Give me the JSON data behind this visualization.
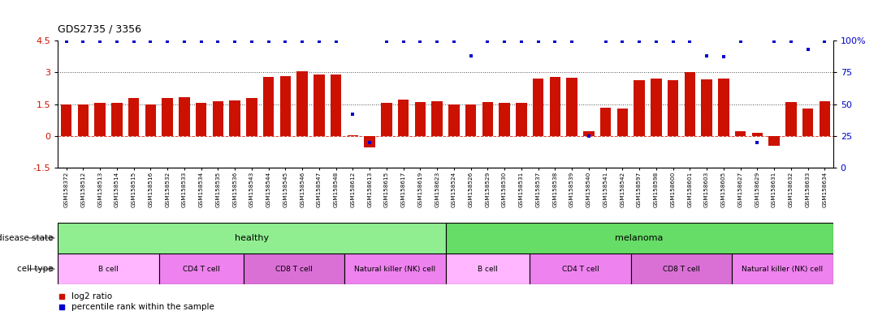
{
  "title": "GDS2735 / 3356",
  "samples": [
    "GSM158372",
    "GSM158512",
    "GSM158513",
    "GSM158514",
    "GSM158515",
    "GSM158516",
    "GSM158532",
    "GSM158533",
    "GSM158534",
    "GSM158535",
    "GSM158536",
    "GSM158543",
    "GSM158544",
    "GSM158545",
    "GSM158546",
    "GSM158547",
    "GSM158548",
    "GSM158612",
    "GSM158613",
    "GSM158615",
    "GSM158617",
    "GSM158619",
    "GSM158623",
    "GSM158524",
    "GSM158526",
    "GSM158529",
    "GSM158530",
    "GSM158531",
    "GSM158537",
    "GSM158538",
    "GSM158539",
    "GSM158540",
    "GSM158541",
    "GSM158542",
    "GSM158597",
    "GSM158598",
    "GSM158600",
    "GSM158601",
    "GSM158603",
    "GSM158605",
    "GSM158627",
    "GSM158629",
    "GSM158631",
    "GSM158632",
    "GSM158633",
    "GSM158634"
  ],
  "log2_ratio": [
    1.5,
    1.48,
    1.55,
    1.55,
    1.8,
    1.5,
    1.78,
    1.83,
    1.55,
    1.65,
    1.68,
    1.78,
    2.78,
    2.83,
    3.05,
    2.88,
    2.88,
    0.03,
    -0.55,
    1.55,
    1.7,
    1.6,
    1.65,
    1.48,
    1.47,
    1.6,
    1.58,
    1.58,
    2.7,
    2.78,
    2.75,
    0.22,
    1.35,
    1.3,
    2.62,
    2.72,
    2.62,
    3.0,
    2.65,
    2.72,
    0.22,
    0.15,
    -0.45,
    1.6,
    1.3,
    1.63
  ],
  "percentile": [
    99,
    99,
    99,
    99,
    99,
    99,
    99,
    99,
    99,
    99,
    99,
    99,
    99,
    99,
    99,
    99,
    99,
    42,
    20,
    99,
    99,
    99,
    99,
    99,
    88,
    99,
    99,
    99,
    99,
    99,
    99,
    25,
    99,
    99,
    99,
    99,
    99,
    99,
    88,
    87,
    99,
    20,
    99,
    99,
    93,
    99
  ],
  "disease_state_groups": [
    {
      "label": "healthy",
      "start": 0,
      "end": 23,
      "color": "#90EE90"
    },
    {
      "label": "melanoma",
      "start": 23,
      "end": 46,
      "color": "#66DD66"
    }
  ],
  "cell_type_groups": [
    {
      "label": "B cell",
      "start": 0,
      "end": 6,
      "color": "#FFB6FF"
    },
    {
      "label": "CD4 T cell",
      "start": 6,
      "end": 11,
      "color": "#EE82EE"
    },
    {
      "label": "CD8 T cell",
      "start": 11,
      "end": 17,
      "color": "#DA70D6"
    },
    {
      "label": "Natural killer (NK) cell",
      "start": 17,
      "end": 23,
      "color": "#EE82EE"
    },
    {
      "label": "B cell",
      "start": 23,
      "end": 28,
      "color": "#FFB6FF"
    },
    {
      "label": "CD4 T cell",
      "start": 28,
      "end": 34,
      "color": "#EE82EE"
    },
    {
      "label": "CD8 T cell",
      "start": 34,
      "end": 40,
      "color": "#DA70D6"
    },
    {
      "label": "Natural killer (NK) cell",
      "start": 40,
      "end": 46,
      "color": "#EE82EE"
    }
  ],
  "bar_color": "#CC1100",
  "dot_color": "#0000CC",
  "ylim_left": [
    -1.5,
    4.5
  ],
  "ylim_right": [
    0,
    100
  ],
  "yticks_left": [
    -1.5,
    0,
    1.5,
    3,
    4.5
  ],
  "yticks_right": [
    0,
    25,
    50,
    75,
    100
  ],
  "bg_color": "#FFFFFF"
}
